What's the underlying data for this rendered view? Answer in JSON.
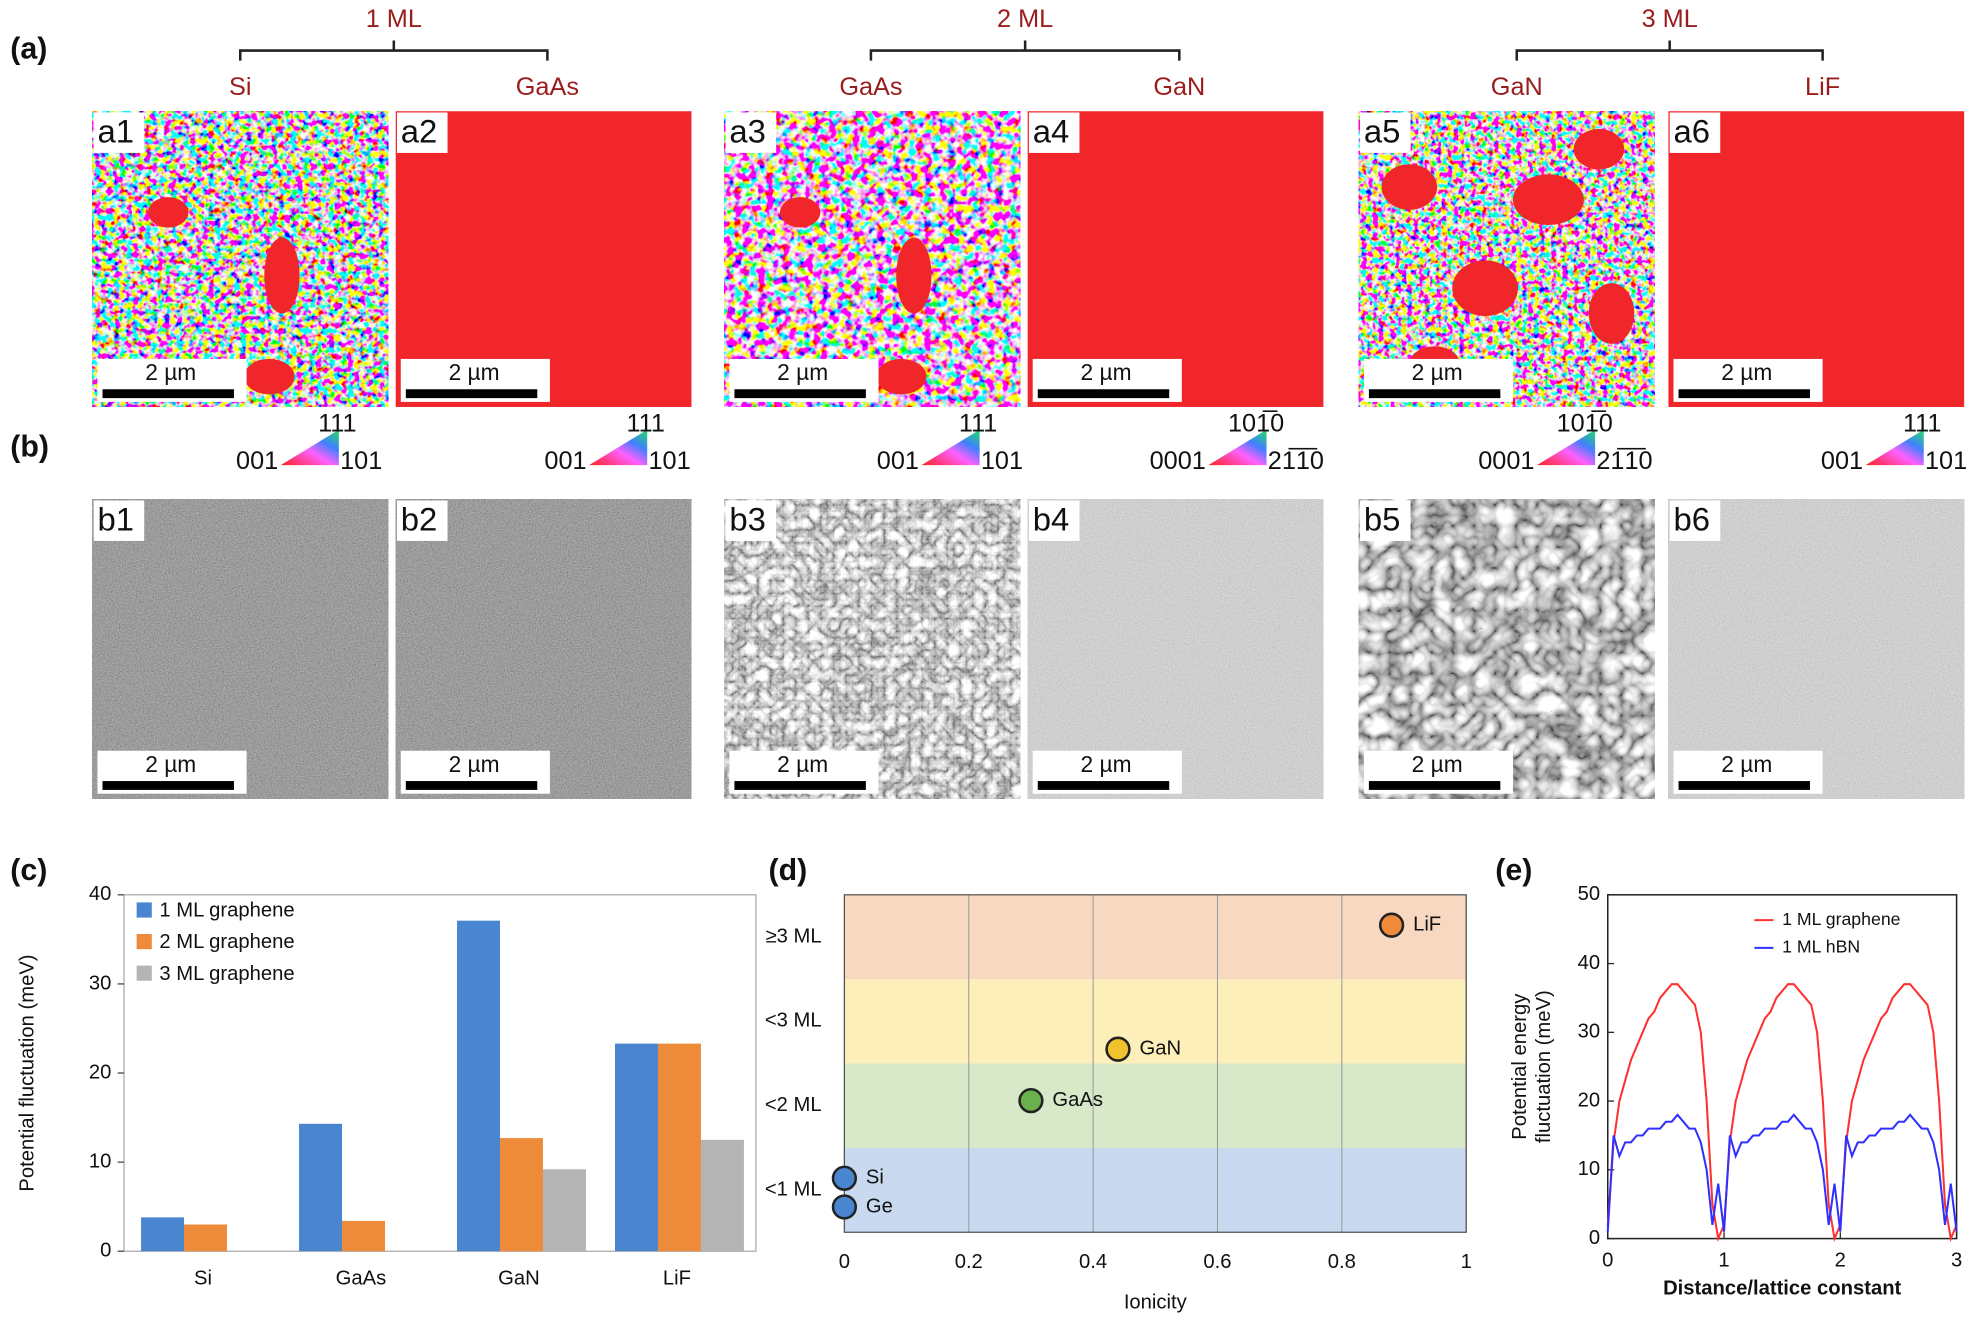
{
  "figure": {
    "panel_labels": [
      "(a)",
      "(b)",
      "(c)",
      "(d)",
      "(e)"
    ],
    "groups": [
      {
        "label": "1 ML",
        "substrates": [
          "Si",
          "GaAs"
        ]
      },
      {
        "label": "2 ML",
        "substrates": [
          "GaAs",
          "GaN"
        ]
      },
      {
        "label": "3 ML",
        "substrates": [
          "GaN",
          "LiF"
        ]
      }
    ],
    "ebsd_panels": [
      {
        "tag": "a1",
        "scale_bar": "2 µm",
        "color_key": {
          "top": "111",
          "left": "001",
          "right": "101"
        }
      },
      {
        "tag": "a2",
        "scale_bar": "2 µm",
        "color_key": {
          "top": "111",
          "left": "001",
          "right": "101"
        }
      },
      {
        "tag": "a3",
        "scale_bar": "2 µm",
        "color_key": {
          "top": "111",
          "left": "001",
          "right": "101"
        }
      },
      {
        "tag": "a4",
        "scale_bar": "2 µm",
        "color_key": {
          "top": "101̅0",
          "left": "0001",
          "right": "21̅1̅0"
        }
      },
      {
        "tag": "a5",
        "scale_bar": "2 µm",
        "color_key": {
          "top": "101̅0",
          "left": "0001",
          "right": "21̅1̅0"
        }
      },
      {
        "tag": "a6",
        "scale_bar": "2 µm",
        "color_key": {
          "top": "111",
          "left": "001",
          "right": "101"
        }
      }
    ],
    "sem_panels": [
      {
        "tag": "b1",
        "scale_bar": "2 µm"
      },
      {
        "tag": "b2",
        "scale_bar": "2 µm"
      },
      {
        "tag": "b3",
        "scale_bar": "2 µm"
      },
      {
        "tag": "b4",
        "scale_bar": "2 µm"
      },
      {
        "tag": "b5",
        "scale_bar": "2 µm"
      },
      {
        "tag": "b6",
        "scale_bar": "2 µm"
      }
    ]
  },
  "chart_data": [
    {
      "type": "bar",
      "ylabel": "Potential fluctuation (meV)",
      "categories": [
        "Si",
        "GaAs",
        "GaN",
        "LiF"
      ],
      "series": [
        {
          "name": "1 ML graphene",
          "color": "#4a86d0",
          "values": [
            3.8,
            14.3,
            37.1,
            23.3
          ]
        },
        {
          "name": "2 ML graphene",
          "color": "#ed8b3a",
          "values": [
            3.0,
            3.4,
            12.7,
            23.3
          ]
        },
        {
          "name": "3 ML graphene",
          "color": "#b4b4b4",
          "values": [
            null,
            null,
            9.2,
            12.5
          ]
        }
      ],
      "ylim": [
        0,
        40
      ],
      "yticks": [
        0,
        10,
        20,
        30,
        40
      ]
    },
    {
      "type": "scatter",
      "xlabel": "Ionicity",
      "x": [
        0,
        0,
        0.3,
        0.44,
        0.88
      ],
      "values": [
        0.64,
        0.3,
        1.56,
        2.17,
        3.64
      ],
      "point_labels": [
        "Si",
        "Ge",
        "GaAs",
        "GaN",
        "LiF"
      ],
      "colors": [
        "#4a86d0",
        "#4a86d0",
        "#6ab04c",
        "#f2c12e",
        "#ee8a3a"
      ],
      "xlim": [
        0,
        1
      ],
      "xticks": [
        0,
        0.2,
        0.4,
        0.6,
        0.8,
        1
      ],
      "ylim": [
        0,
        4
      ],
      "yticks": [
        {
          "value": 0.5,
          "label": "<1 ML"
        },
        {
          "value": 1.5,
          "label": "<2 ML"
        },
        {
          "value": 2.5,
          "label": "<3 ML"
        },
        {
          "value": 3.5,
          "label": "≥3 ML"
        }
      ],
      "band_colors": [
        "#c9daf0",
        "#d7e9c9",
        "#fcefb9",
        "#f8d8c1"
      ],
      "grid": true
    },
    {
      "type": "line",
      "xlabel": "Distance/lattice constant",
      "ylabel": [
        "Potential energy",
        "fluctuation (meV)"
      ],
      "x": [
        0,
        0.05,
        0.1,
        0.15,
        0.2,
        0.25,
        0.3,
        0.35,
        0.4,
        0.45,
        0.5,
        0.55,
        0.6,
        0.65,
        0.7,
        0.75,
        0.8,
        0.85,
        0.9,
        0.95,
        1,
        1.05,
        1.1,
        1.15,
        1.2,
        1.25,
        1.3,
        1.35,
        1.4,
        1.45,
        1.5,
        1.55,
        1.6,
        1.65,
        1.7,
        1.75,
        1.8,
        1.85,
        1.9,
        1.95,
        2,
        2.05,
        2.1,
        2.15,
        2.2,
        2.25,
        2.3,
        2.35,
        2.4,
        2.45,
        2.5,
        2.55,
        2.6,
        2.65,
        2.7,
        2.75,
        2.8,
        2.85,
        2.9,
        2.95,
        3
      ],
      "series": [
        {
          "name": "1 ML graphene",
          "color": "#ff3030",
          "values": [
            2,
            14,
            20,
            23,
            26,
            28,
            30,
            32,
            33,
            35,
            36,
            37,
            37,
            36,
            35,
            34,
            30,
            20,
            5,
            0,
            2,
            14,
            20,
            23,
            26,
            28,
            30,
            32,
            33,
            35,
            36,
            37,
            37,
            36,
            35,
            34,
            30,
            20,
            5,
            0,
            2,
            14,
            20,
            23,
            26,
            28,
            30,
            32,
            33,
            35,
            36,
            37,
            37,
            36,
            35,
            34,
            30,
            20,
            5,
            0,
            2
          ]
        },
        {
          "name": "1 ML hBN",
          "color": "#3030ff",
          "values": [
            1,
            15,
            12,
            14,
            14,
            15,
            15,
            16,
            16,
            16,
            17,
            17,
            18,
            17,
            16,
            16,
            14,
            10,
            2,
            8,
            1,
            15,
            12,
            14,
            14,
            15,
            15,
            16,
            16,
            16,
            17,
            17,
            18,
            17,
            16,
            16,
            14,
            10,
            2,
            8,
            1,
            15,
            12,
            14,
            14,
            15,
            15,
            16,
            16,
            16,
            17,
            17,
            18,
            17,
            16,
            16,
            14,
            10,
            2,
            8,
            1
          ]
        }
      ],
      "xlim": [
        0,
        3
      ],
      "xticks": [
        0,
        1,
        2,
        3
      ],
      "ylim": [
        0,
        50
      ],
      "yticks": [
        0,
        10,
        20,
        30,
        40,
        50
      ]
    }
  ]
}
